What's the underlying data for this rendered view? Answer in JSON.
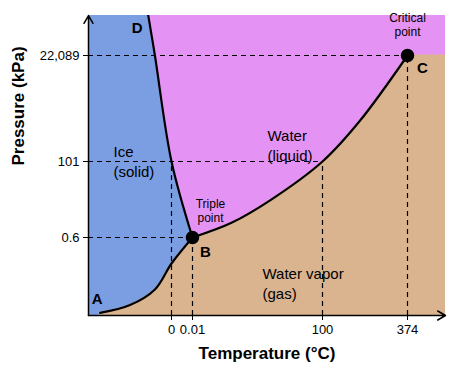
{
  "chart_data": {
    "type": "phase",
    "xlabel": "Temperature (°C)",
    "ylabel": "Pressure (kPa)",
    "xlim": [
      -50,
      500
    ],
    "xticks": [
      0,
      0.01,
      100,
      374
    ],
    "ylim": [
      0,
      30000
    ],
    "yticks": [
      0.6,
      101,
      {
        "value": 22089,
        "label": "22,089"
      }
    ],
    "regions": [
      {
        "label": "Ice\n(solid)",
        "color": "#7b9ee3"
      },
      {
        "label": "Water\n(liquid)",
        "color": "#e492f4"
      },
      {
        "label": "Water vapor\n(gas)",
        "color": "#d9b48f"
      }
    ],
    "boundaries": [
      {
        "x": [
          -43,
          -25,
          -10,
          0,
          0.01
        ],
        "y": [
          0.02,
          0.08,
          0.2,
          0.4,
          0.6
        ]
      },
      {
        "x": [
          0.01,
          0,
          -10,
          -14
        ],
        "y": [
          0.6,
          101,
          22089,
          30000
        ]
      },
      {
        "x": [
          0.01,
          30,
          60,
          100,
          220,
          374
        ],
        "y": [
          0.6,
          20,
          50,
          101,
          8500,
          22089
        ]
      }
    ],
    "points": [
      {
        "label": "A",
        "x": -43,
        "y": 0.02
      },
      {
        "label": "B",
        "annotation": "Triple\npoint",
        "x": 0.01,
        "y": 0.6,
        "marker": "circle"
      },
      {
        "label": "C",
        "annotation": "Critical\npoint",
        "x": 374,
        "y": 22089,
        "marker": "circle"
      },
      {
        "label": "D",
        "x": -14,
        "y": 30000
      }
    ],
    "guides": [
      {
        "x": 0,
        "y": 101
      },
      {
        "x": 0.01,
        "y": 0.6
      },
      {
        "x": 100,
        "y": 101
      },
      {
        "x": 374,
        "y": 22089
      }
    ]
  }
}
